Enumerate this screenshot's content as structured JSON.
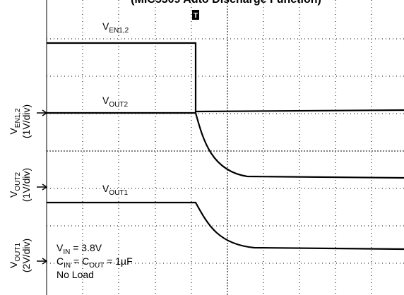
{
  "title": "(MIC5309 Auto Discharge Function)",
  "trigger": "T",
  "traces": [
    {
      "main": "V",
      "sub": "EN1,2"
    },
    {
      "main": "V",
      "sub": "OUT2"
    },
    {
      "main": "V",
      "sub": "OUT1"
    }
  ],
  "channels": [
    {
      "main": "V",
      "sub": "EN1,2",
      "scale": "(1V/div)"
    },
    {
      "main": "V",
      "sub": "OUT2",
      "scale": "(1V/div)"
    },
    {
      "main": "V",
      "sub": "OUT1",
      "scale": "(2V/div)"
    }
  ],
  "conditions": {
    "vin": {
      "main": "V",
      "sub": "IN",
      "rest": " = 3.8V"
    },
    "cap": {
      "main1": "C",
      "sub1": "IN",
      "mid": " = C",
      "sub2": "OUT",
      "rest": " = 1µF"
    },
    "load": "No Load"
  }
}
